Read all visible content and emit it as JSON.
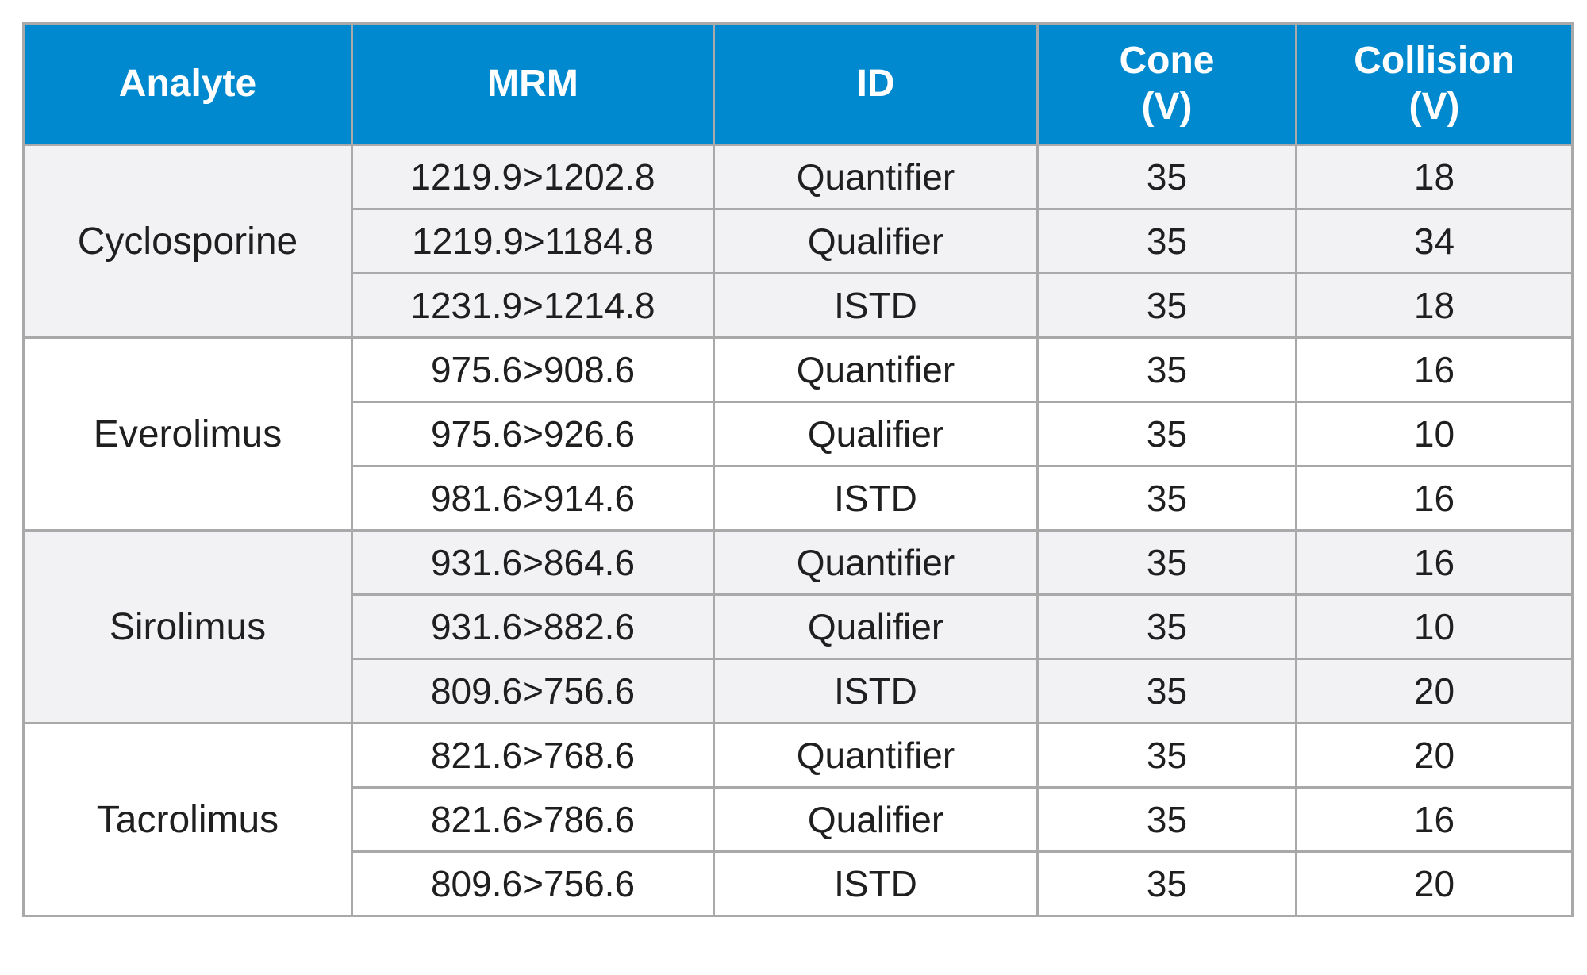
{
  "table": {
    "headers": {
      "analyte": "Analyte",
      "mrm": "MRM",
      "id": "ID",
      "cone": [
        "Cone",
        "(V)"
      ],
      "collision": [
        "Collision",
        "(V)"
      ]
    },
    "groups": [
      {
        "analyte": "Cyclosporine",
        "rows": [
          {
            "mrm": "1219.9>1202.8",
            "id": "Quantifier",
            "cone": "35",
            "collision": "18"
          },
          {
            "mrm": "1219.9>1184.8",
            "id": "Qualifier",
            "cone": "35",
            "collision": "34"
          },
          {
            "mrm": "1231.9>1214.8",
            "id": "ISTD",
            "cone": "35",
            "collision": "18"
          }
        ]
      },
      {
        "analyte": "Everolimus",
        "rows": [
          {
            "mrm": "975.6>908.6",
            "id": "Quantifier",
            "cone": "35",
            "collision": "16"
          },
          {
            "mrm": "975.6>926.6",
            "id": "Qualifier",
            "cone": "35",
            "collision": "10"
          },
          {
            "mrm": "981.6>914.6",
            "id": "ISTD",
            "cone": "35",
            "collision": "16"
          }
        ]
      },
      {
        "analyte": "Sirolimus",
        "rows": [
          {
            "mrm": "931.6>864.6",
            "id": "Quantifier",
            "cone": "35",
            "collision": "16"
          },
          {
            "mrm": "931.6>882.6",
            "id": "Qualifier",
            "cone": "35",
            "collision": "10"
          },
          {
            "mrm": "809.6>756.6",
            "id": "ISTD",
            "cone": "35",
            "collision": "20"
          }
        ]
      },
      {
        "analyte": "Tacrolimus",
        "rows": [
          {
            "mrm": "821.6>768.6",
            "id": "Quantifier",
            "cone": "35",
            "collision": "20"
          },
          {
            "mrm": "821.6>786.6",
            "id": "Qualifier",
            "cone": "35",
            "collision": "16"
          },
          {
            "mrm": "809.6>756.6",
            "id": "ISTD",
            "cone": "35",
            "collision": "20"
          }
        ]
      }
    ],
    "colors": {
      "header_bg": "#0089cf",
      "header_text": "#ffffff",
      "shaded_row_bg": "#f2f2f4",
      "grid_line": "#a9a9a9"
    }
  }
}
